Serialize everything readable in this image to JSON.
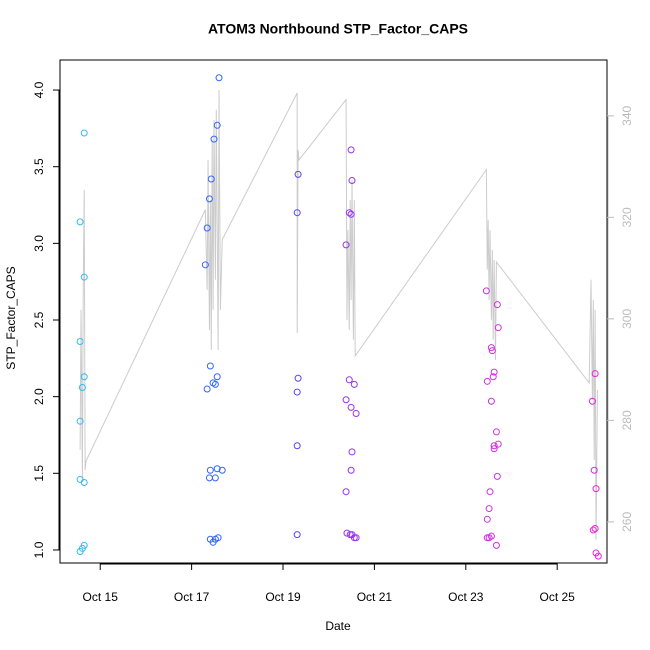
{
  "chart_data": {
    "type": "scatter",
    "title": "ATOM3 Northbound STP_Factor_CAPS",
    "xlabel": "Date",
    "ylabel": "STP_Factor_CAPS",
    "xlim": [
      14.12,
      26.09
    ],
    "xticks": [
      {
        "value": 15,
        "label": "Oct 15"
      },
      {
        "value": 17,
        "label": "Oct 17"
      },
      {
        "value": 19,
        "label": "Oct 19"
      },
      {
        "value": 21,
        "label": "Oct 21"
      },
      {
        "value": 23,
        "label": "Oct 23"
      },
      {
        "value": 25,
        "label": "Oct 25"
      }
    ],
    "ylim": [
      0.915,
      4.196
    ],
    "yticks": [
      {
        "value": 1,
        "label": "1.0"
      },
      1.5,
      {
        "value": 2,
        "label": "2.0"
      },
      2.5,
      {
        "value": 3,
        "label": "3.0"
      },
      3.5,
      {
        "value": 4,
        "label": "4.0"
      }
    ],
    "y2lim": [
      251.9,
      351.0
    ],
    "y2ticks": [
      260,
      280,
      300,
      320,
      340
    ],
    "series": [
      {
        "type": "scatter",
        "color": "#33bbee",
        "x": [
          14.65,
          14.56,
          14.65,
          14.56,
          14.61,
          14.65,
          14.56,
          14.56,
          14.65,
          14.56,
          14.61,
          14.65
        ],
        "values": [
          3.72,
          3.14,
          2.78,
          2.36,
          2.06,
          2.13,
          1.84,
          1.46,
          1.44,
          0.99,
          1.01,
          1.03
        ]
      },
      {
        "type": "scatter",
        "color": "#3366ff",
        "x": [
          17.6,
          17.56,
          17.49,
          17.43,
          17.39,
          17.34,
          17.3,
          17.41,
          17.56,
          17.47,
          17.52,
          17.34,
          17.41,
          17.67,
          17.56,
          17.39,
          17.52,
          17.41,
          17.58,
          17.47,
          17.52
        ],
        "values": [
          4.08,
          3.77,
          3.68,
          3.42,
          3.29,
          3.1,
          2.86,
          2.2,
          2.13,
          2.09,
          2.08,
          2.05,
          1.52,
          1.52,
          1.53,
          1.47,
          1.47,
          1.07,
          1.08,
          1.05,
          1.07
        ]
      },
      {
        "type": "scatter",
        "color": "#5544ff",
        "x": [
          19.33,
          19.31,
          19.33,
          19.31,
          19.31,
          19.31
        ],
        "values": [
          3.45,
          3.2,
          2.12,
          2.03,
          1.68,
          1.1
        ]
      },
      {
        "type": "scatter",
        "color": "#9933ee",
        "x": [
          20.49,
          20.51,
          20.45,
          20.49,
          20.38,
          20.45,
          20.56,
          20.38,
          20.49,
          20.6,
          20.51,
          20.49,
          20.38,
          20.4,
          20.47,
          20.51,
          20.56,
          20.6
        ],
        "values": [
          3.61,
          3.41,
          3.2,
          3.19,
          2.99,
          2.11,
          2.08,
          1.98,
          1.93,
          1.89,
          1.64,
          1.52,
          1.38,
          1.11,
          1.1,
          1.1,
          1.08,
          1.08
        ]
      },
      {
        "type": "scatter",
        "color": "#cc33dd",
        "x": [
          23.45,
          23.56,
          23.58,
          23.69,
          23.71,
          23.62,
          23.6,
          23.47,
          23.56,
          23.67,
          23.62,
          23.71,
          23.62,
          23.69,
          23.53,
          23.51,
          23.47,
          23.47,
          23.51,
          23.56,
          23.67
        ],
        "values": [
          2.69,
          2.32,
          2.3,
          2.6,
          2.45,
          2.16,
          2.13,
          2.1,
          1.97,
          1.77,
          1.68,
          1.69,
          1.66,
          1.48,
          1.38,
          1.27,
          1.2,
          1.08,
          1.08,
          1.09,
          1.03
        ]
      },
      {
        "type": "scatter",
        "color": "#ee22dd",
        "x": [
          25.83,
          25.77,
          25.81,
          25.85,
          25.79,
          25.83,
          25.85,
          25.9
        ],
        "values": [
          2.15,
          1.97,
          1.52,
          1.4,
          1.13,
          1.14,
          0.98,
          0.96
        ]
      },
      {
        "type": "line",
        "axis": "y2",
        "color": "#cccccc",
        "x": [
          14.56,
          14.58,
          14.61,
          14.63,
          14.65,
          14.67,
          14.69,
          17.3,
          17.34,
          17.36,
          17.39,
          17.41,
          17.43,
          17.45,
          17.47,
          17.49,
          17.52,
          17.54,
          17.58,
          17.6,
          17.63,
          17.67,
          19.31,
          19.31,
          19.33,
          19.35,
          20.38,
          20.4,
          20.42,
          20.45,
          20.47,
          20.49,
          20.51,
          20.54,
          20.56,
          20.58,
          23.45,
          23.47,
          23.49,
          23.51,
          23.53,
          23.56,
          23.58,
          23.6,
          23.62,
          23.65,
          23.67,
          25.7,
          25.74,
          25.77,
          25.79,
          25.81,
          25.83,
          25.85,
          25.88
        ],
        "values": [
          274.2,
          301.8,
          268.3,
          307.7,
          325.4,
          270.2,
          272.0,
          321.5,
          305.7,
          331.3,
          297.8,
          323.4,
          293.9,
          335.3,
          301.8,
          339.2,
          307.7,
          341.2,
          293.9,
          345.1,
          301.8,
          315.6,
          344.5,
          297.2,
          333.3,
          331.3,
          343.2,
          299.8,
          317.5,
          297.8,
          323.4,
          303.7,
          327.4,
          295.9,
          323.4,
          292.7,
          329.4,
          309.7,
          319.5,
          303.7,
          317.5,
          299.8,
          313.6,
          295.9,
          311.6,
          291.9,
          311.2,
          287.4,
          307.7,
          284.0,
          303.7,
          272.2,
          301.8,
          256.5,
          286.0
        ]
      }
    ]
  }
}
